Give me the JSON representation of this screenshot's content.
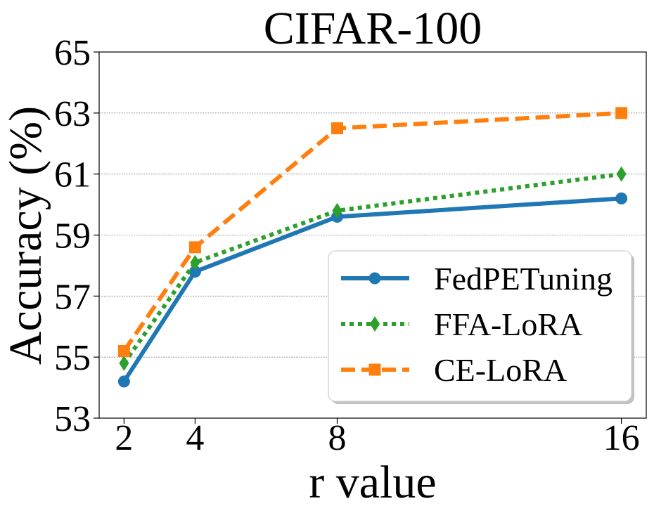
{
  "chart_data": {
    "type": "line",
    "title": "CIFAR-100",
    "xlabel": "r value",
    "ylabel": "Accuracy (%)",
    "x": [
      2,
      4,
      8,
      16
    ],
    "xticks": [
      "2",
      "4",
      "8",
      "16"
    ],
    "yticks": [
      "53",
      "55",
      "57",
      "59",
      "61",
      "63",
      "65"
    ],
    "xlim": [
      1.3,
      16.7
    ],
    "ylim": [
      53,
      65
    ],
    "grid": "horizontal",
    "legend_position": "bottom-right",
    "series": [
      {
        "name": "FedPETuning",
        "values": [
          54.2,
          57.8,
          59.6,
          60.2
        ],
        "color": "#1f77b4",
        "linestyle": "solid",
        "marker": "circle"
      },
      {
        "name": "FFA-LoRA",
        "values": [
          54.8,
          58.1,
          59.8,
          61.0
        ],
        "color": "#2ca02c",
        "linestyle": "dotted",
        "marker": "diamond"
      },
      {
        "name": "CE-LoRA",
        "values": [
          55.2,
          58.6,
          62.5,
          63.0
        ],
        "color": "#ff7f0e",
        "linestyle": "dashed",
        "marker": "square"
      }
    ]
  }
}
